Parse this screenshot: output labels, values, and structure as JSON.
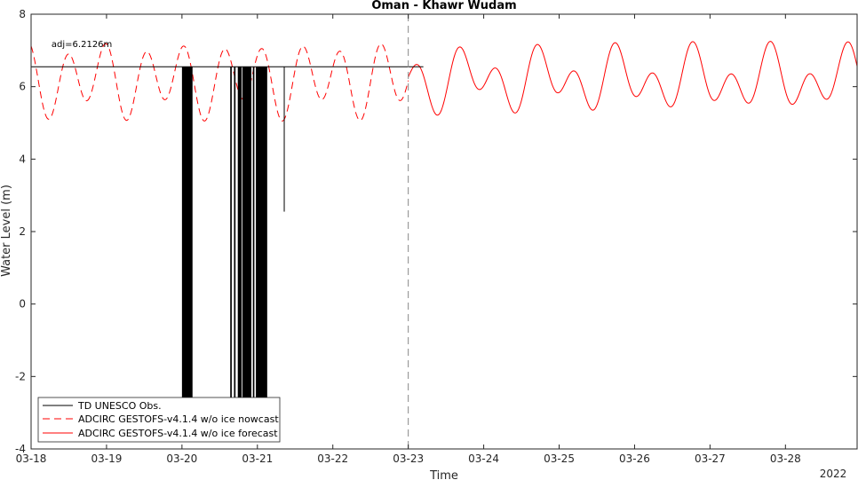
{
  "chart_data": {
    "type": "line",
    "title": "Oman - Khawr Wudam",
    "xlabel": "Time",
    "ylabel": "Water Level (m)",
    "year_label": "2022",
    "xlim": [
      0,
      10.95
    ],
    "ylim": [
      -4,
      8
    ],
    "x_ticks": [
      {
        "value": 0,
        "label": "03-18"
      },
      {
        "value": 1,
        "label": "03-19"
      },
      {
        "value": 2,
        "label": "03-20"
      },
      {
        "value": 3,
        "label": "03-21"
      },
      {
        "value": 4,
        "label": "03-22"
      },
      {
        "value": 5,
        "label": "03-23"
      },
      {
        "value": 6,
        "label": "03-24"
      },
      {
        "value": 7,
        "label": "03-25"
      },
      {
        "value": 8,
        "label": "03-26"
      },
      {
        "value": 9,
        "label": "03-27"
      },
      {
        "value": 10,
        "label": "03-28"
      }
    ],
    "y_ticks": [
      {
        "value": -4,
        "label": "-4"
      },
      {
        "value": -2,
        "label": "-2"
      },
      {
        "value": 0,
        "label": "0"
      },
      {
        "value": 2,
        "label": "2"
      },
      {
        "value": 4,
        "label": "4"
      },
      {
        "value": 6,
        "label": "6"
      },
      {
        "value": 8,
        "label": "8"
      }
    ],
    "nowcast_end_x": 5.0,
    "annotation": {
      "text": "adj=6.2126m",
      "x": 0.27,
      "y": 7.1
    },
    "adj_line": {
      "y": 6.55,
      "x_start": 0,
      "x_end": 5.2
    },
    "series": [
      {
        "name": "TD UNESCO Obs.",
        "color": "#000000",
        "style": "solid",
        "baseline": 6.55,
        "spikes": [
          {
            "x0": 2.0,
            "x1": 2.14,
            "y_min": -2.6
          },
          {
            "x0": 2.64,
            "x1": 2.66,
            "y_min": -2.6
          },
          {
            "x0": 2.69,
            "x1": 2.71,
            "y_min": -2.6
          },
          {
            "x0": 2.74,
            "x1": 2.79,
            "y_min": -2.6
          },
          {
            "x0": 2.8,
            "x1": 2.92,
            "y_min": -2.6
          },
          {
            "x0": 2.94,
            "x1": 2.96,
            "y_min": -2.6
          },
          {
            "x0": 2.98,
            "x1": 3.13,
            "y_min": -2.6
          },
          {
            "x0": 3.35,
            "x1": 3.36,
            "y_min": 2.55
          }
        ]
      },
      {
        "name": "ADCIRC GESTOFS-v4.1.4 w/o ice nowcast",
        "color": "#ff0000",
        "style": "dashed",
        "x_range": [
          0,
          5.0
        ],
        "tide": {
          "mean": 6.2,
          "m2_amp": 0.85,
          "k1_amp": 0.3
        }
      },
      {
        "name": "ADCIRC GESTOFS-v4.1.4 w/o ice forecast",
        "color": "#ff0000",
        "style": "solid",
        "x_range": [
          5.0,
          10.95
        ],
        "tide": {
          "mean": 6.2,
          "m2_amp": 0.6,
          "k1_amp": 0.45
        }
      }
    ],
    "legend_position": "lower-left"
  }
}
